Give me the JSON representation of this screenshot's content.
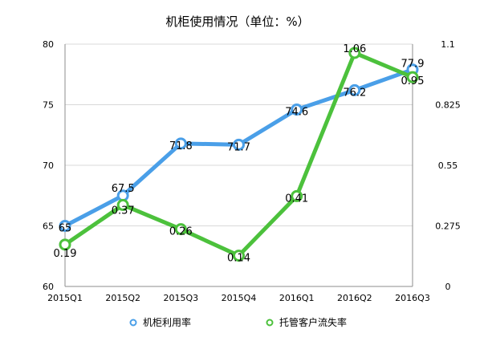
{
  "chart_data": {
    "type": "line",
    "title": "机柜使用情况（单位：%）",
    "categories": [
      "2015Q1",
      "2015Q2",
      "2015Q3",
      "2015Q4",
      "2016Q1",
      "2016Q2",
      "2016Q3"
    ],
    "series": [
      {
        "name": "机柜利用率",
        "axis": "left",
        "color": "#4a9fe8",
        "values": [
          65,
          67.5,
          71.8,
          71.7,
          74.6,
          76.2,
          77.9
        ],
        "labels": [
          "65",
          "67.5",
          "71.8",
          "71.7",
          "74.6",
          "76.2",
          "77.9"
        ]
      },
      {
        "name": "托管客户流失率",
        "axis": "right",
        "color": "#4cc13c",
        "values": [
          0.19,
          0.37,
          0.26,
          0.14,
          0.41,
          1.06,
          0.95
        ],
        "labels": [
          "0.19",
          "0.37",
          "0.26",
          "0.14",
          "0.41",
          "1.06",
          "0.95"
        ]
      }
    ],
    "left_axis": {
      "range": [
        60,
        80
      ],
      "ticks": [
        "60",
        "65",
        "70",
        "75",
        "80"
      ],
      "tick_values": [
        60,
        65,
        70,
        75,
        80
      ]
    },
    "right_axis": {
      "range": [
        0,
        1.1
      ],
      "ticks": [
        "0",
        "0.275",
        "0.55",
        "0.825",
        "1.1"
      ],
      "tick_values": [
        0,
        0.275,
        0.55,
        0.825,
        1.1
      ]
    },
    "grid": "horizontal",
    "legend": "bottom"
  }
}
